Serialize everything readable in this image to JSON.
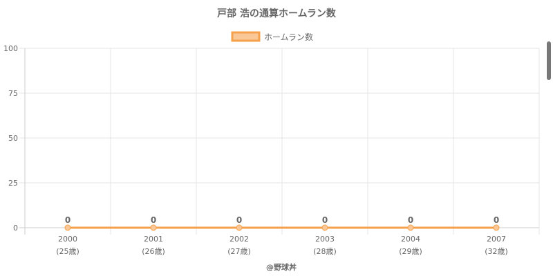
{
  "chart_data": {
    "type": "line",
    "title": "戸部 浩の通算ホームラン数",
    "categories": [
      "2000",
      "2001",
      "2002",
      "2003",
      "2004",
      "2007"
    ],
    "sub_labels": [
      "(25歳)",
      "(26歳)",
      "(27歳)",
      "(28歳)",
      "(29歳)",
      "(32歳)"
    ],
    "series": [
      {
        "name": "ホームラン数",
        "values": [
          0,
          0,
          0,
          0,
          0,
          0
        ],
        "color": "#f5a04a",
        "fill": "#fac896"
      }
    ],
    "ylim": [
      0,
      100
    ],
    "yticks": [
      0,
      25,
      50,
      75,
      100
    ],
    "grid": true,
    "legend_position": "top-center"
  },
  "credit": "@野球丼"
}
